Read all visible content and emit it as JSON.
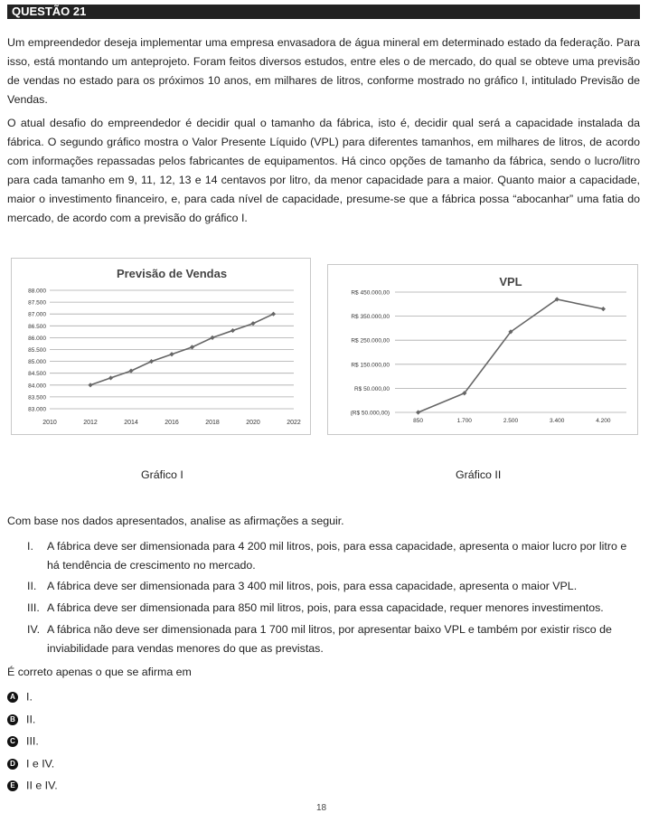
{
  "question_label": "QUESTÃO 21",
  "paragraphs": [
    "Um empreendedor deseja implementar uma empresa envasadora de água mineral em determinado estado da federação. Para isso, está montando um anteprojeto. Foram feitos diversos estudos, entre eles o de mercado, do qual se obteve uma previsão de vendas no estado para os próximos 10 anos, em milhares de litros, conforme mostrado no gráfico I, intitulado Previsão de Vendas.",
    "O atual desafio do empreendedor é decidir qual o tamanho da fábrica, isto é, decidir qual será a capacidade instalada da fábrica. O segundo gráfico mostra o Valor Presente Líquido (VPL) para diferentes tamanhos, em milhares de litros, de acordo com informações repassadas pelos fabricantes de equipamentos. Há cinco opções de tamanho da fábrica, sendo o lucro/litro para cada tamanho em 9, 11, 12, 13 e 14 centavos por litro, da menor capacidade para a maior. Quanto maior a capacidade, maior o investimento financeiro, e, para cada nível de capacidade, presume-se que a fábrica possa “abocanhar” uma fatia do mercado, de acordo com a previsão do gráfico I."
  ],
  "chart_data": [
    {
      "type": "line",
      "title": "Previsão de Vendas",
      "xlabel": "",
      "ylabel": "",
      "x": [
        2012,
        2013,
        2014,
        2015,
        2016,
        2017,
        2018,
        2019,
        2020,
        2021
      ],
      "values": [
        84000,
        84300,
        84600,
        85000,
        85300,
        85600,
        86000,
        86300,
        86600,
        87000
      ],
      "xlim": [
        2010,
        2022
      ],
      "ylim": [
        83000,
        88000
      ],
      "x_ticks": [
        "2010",
        "2012",
        "2014",
        "2016",
        "2018",
        "2020",
        "2022"
      ],
      "y_ticks": [
        "83.000",
        "83.500",
        "84.000",
        "84.500",
        "85.000",
        "85.500",
        "86.000",
        "86.500",
        "87.000",
        "87.500",
        "88.000"
      ],
      "grid": true,
      "color": "#666666"
    },
    {
      "type": "line",
      "title": "VPL",
      "xlabel": "",
      "ylabel": "",
      "categories": [
        "850",
        "1.700",
        "2.500",
        "3.400",
        "4.200"
      ],
      "values": [
        -50000,
        30000,
        285000,
        420000,
        380000
      ],
      "ylim": [
        -50000,
        450000
      ],
      "y_ticks": [
        "(R$ 50.000,00)",
        "R$ 50.000,00",
        "R$ 150.000,00",
        "R$ 250.000,00",
        "R$ 350.000,00",
        "R$ 450.000,00"
      ],
      "grid": true,
      "color": "#666666"
    }
  ],
  "captions": [
    "Gráfico I",
    "Gráfico II"
  ],
  "lead": "Com base nos dados apresentados, analise as afirmações a seguir.",
  "statements": [
    {
      "num": "I.",
      "text": "A fábrica deve ser dimensionada para 4 200 mil litros, pois, para essa capacidade, apresenta o maior lucro por litro e há tendência de crescimento no mercado."
    },
    {
      "num": "II.",
      "text": "A fábrica deve ser dimensionada para 3 400 mil litros, pois, para essa capacidade, apresenta o maior VPL."
    },
    {
      "num": "III.",
      "text": "A fábrica deve ser dimensionada para 850 mil litros, pois, para essa capacidade, requer menores investimentos."
    },
    {
      "num": "IV.",
      "text": "A fábrica não deve ser dimensionada para 1 700 mil litros, por apresentar baixo VPL e também por existir risco de inviabilidade para vendas menores do que as previstas."
    }
  ],
  "question": "É correto apenas o que se afirma em",
  "options": [
    {
      "letter": "A",
      "text": "I."
    },
    {
      "letter": "B",
      "text": "II."
    },
    {
      "letter": "C",
      "text": "III."
    },
    {
      "letter": "D",
      "text": "I e IV."
    },
    {
      "letter": "E",
      "text": "II e IV."
    }
  ],
  "page_number": "18"
}
